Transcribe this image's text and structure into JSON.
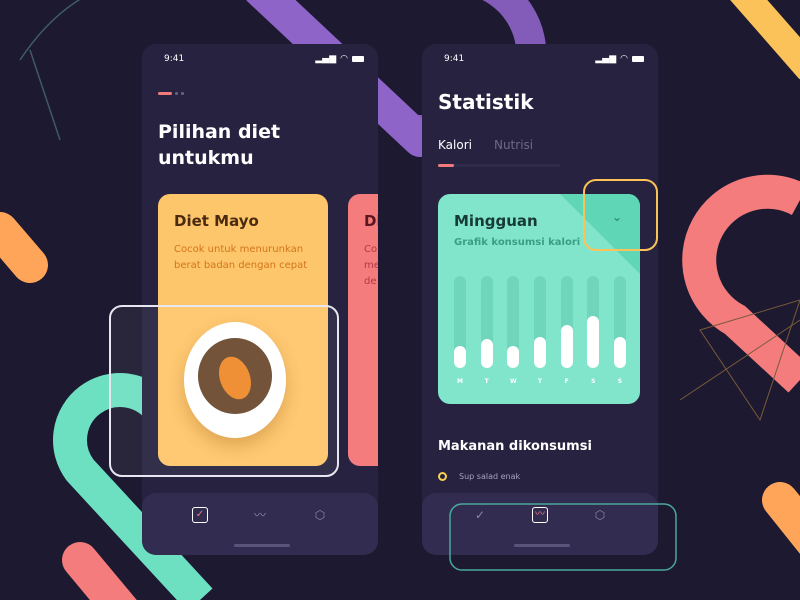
{
  "colors": {
    "background": "#1c1930",
    "phone": "#26223f",
    "accent": "#f27a7a",
    "yellow_card": "#fec66a",
    "red_card": "#f47c7c",
    "mint_card": "#80e5cb"
  },
  "left_screen": {
    "status_time": "9:41",
    "title": "Pilihan diet untukmu",
    "page_dots": {
      "active": 1,
      "total": 3
    },
    "cards": [
      {
        "title": "Diet Mayo",
        "description": "Cocok untuk menurunkan berat badan dengan cepat"
      },
      {
        "title": "Di",
        "description": "Co me de"
      }
    ],
    "nav": [
      {
        "icon": "calendar-check-icon",
        "active": true
      },
      {
        "icon": "chart-icon",
        "active": false
      },
      {
        "icon": "settings-icon",
        "active": false
      }
    ]
  },
  "right_screen": {
    "status_time": "9:41",
    "title": "Statistik",
    "tabs": [
      {
        "label": "Kalori",
        "active": true
      },
      {
        "label": "Nutrisi",
        "active": false
      }
    ],
    "chart_card": {
      "title": "Mingguan",
      "subtitle": "Grafik konsumsi kalori",
      "dropdown_icon": "chevron-down-icon"
    },
    "chart_data": {
      "type": "bar",
      "categories": [
        "M",
        "T",
        "W",
        "T",
        "F",
        "S",
        "S"
      ],
      "values": [
        0.24,
        0.32,
        0.24,
        0.34,
        0.47,
        0.56,
        0.34
      ],
      "ylim": [
        0,
        1
      ]
    },
    "section_title": "Makanan dikonsumsi",
    "foods": [
      "Sup salad enak"
    ],
    "nav": [
      {
        "icon": "calendar-check-icon",
        "active": false
      },
      {
        "icon": "chart-icon",
        "active": true
      },
      {
        "icon": "settings-icon",
        "active": false
      }
    ]
  }
}
